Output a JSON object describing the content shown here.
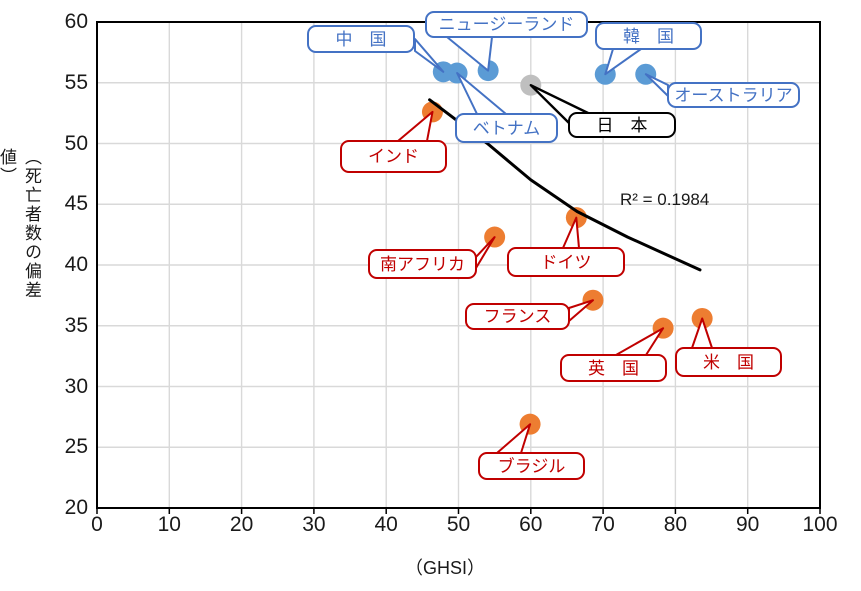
{
  "figure": {
    "x_axis_title": "（GHSI）",
    "y_axis_title": "（死亡者数の偏差値）",
    "r_squared_label": "R² = 0.1984",
    "x_ticks": [
      "0",
      "10",
      "20",
      "30",
      "40",
      "50",
      "60",
      "70",
      "80",
      "90",
      "100"
    ],
    "y_ticks": [
      "20",
      "25",
      "30",
      "35",
      "40",
      "45",
      "50",
      "55",
      "60"
    ]
  },
  "colors": {
    "blue_dot": "#5B9BD5",
    "blue_label": "#4472C4",
    "gray_dot": "#BFBFBF",
    "orange_dot": "#ED7D31",
    "red_label": "#C00000",
    "black": "#000000",
    "gridline": "#D9D9D9"
  },
  "chart_data": {
    "type": "scatter",
    "xlabel": "（GHSI）",
    "ylabel": "（死亡者数の偏差値）",
    "xlim": [
      0,
      100
    ],
    "ylim": [
      20,
      60
    ],
    "x_tick_step": 10,
    "y_tick_step": 5,
    "grid": true,
    "r_squared": 0.1984,
    "series": [
      {
        "name": "blue-countries",
        "dot_color": "#5B9BD5",
        "label_color": "#4472C4",
        "points": [
          {
            "id": "china",
            "label": "中　国",
            "x": 47.9,
            "y": 55.9
          },
          {
            "id": "vietnam",
            "label": "ベトナム",
            "x": 49.8,
            "y": 55.8
          },
          {
            "id": "nz",
            "label": "ニュージーランド",
            "x": 54.1,
            "y": 56.0
          },
          {
            "id": "korea",
            "label": "韓　国",
            "x": 70.3,
            "y": 55.7
          },
          {
            "id": "australia",
            "label": "オーストラリア",
            "x": 75.9,
            "y": 55.7
          }
        ]
      },
      {
        "name": "japan-gray",
        "dot_color": "#BFBFBF",
        "label_color": "#000000",
        "points": [
          {
            "id": "japan",
            "label": "日　本",
            "x": 60.0,
            "y": 54.8
          }
        ]
      },
      {
        "name": "orange-countries",
        "dot_color": "#ED7D31",
        "label_color": "#C00000",
        "points": [
          {
            "id": "india",
            "label": "インド",
            "x": 46.4,
            "y": 52.6
          },
          {
            "id": "south_africa",
            "label": "南アフリカ",
            "x": 55.0,
            "y": 42.3
          },
          {
            "id": "germany",
            "label": "ドイツ",
            "x": 66.3,
            "y": 43.9
          },
          {
            "id": "france",
            "label": "フランス",
            "x": 68.6,
            "y": 37.1
          },
          {
            "id": "uk",
            "label": "英　国",
            "x": 78.3,
            "y": 34.8
          },
          {
            "id": "us",
            "label": "米　国",
            "x": 83.7,
            "y": 35.6
          },
          {
            "id": "brazil",
            "label": "ブラジル",
            "x": 59.9,
            "y": 26.9
          }
        ]
      }
    ],
    "trendline": {
      "color": "#000000",
      "points_xy": [
        [
          46.0,
          53.6
        ],
        [
          54.0,
          50.0
        ],
        [
          60.0,
          47.0
        ],
        [
          66.4,
          44.4
        ],
        [
          73.4,
          42.3
        ],
        [
          83.4,
          39.6
        ]
      ]
    }
  }
}
